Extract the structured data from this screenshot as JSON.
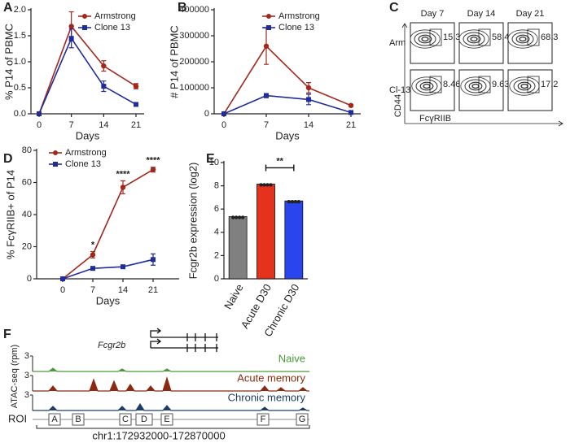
{
  "chart_data": [
    {
      "type": "line",
      "panel": "A",
      "ylabel": "% P14 of PBMC",
      "xlabel": "Days",
      "x": [
        0,
        7,
        14,
        21
      ],
      "xlim": [
        0,
        21
      ],
      "xticks": [
        0,
        7,
        14,
        21
      ],
      "ylim": [
        0,
        2
      ],
      "yticks": [
        {
          "value": 0,
          "label": "0.0"
        },
        {
          "value": 0.5,
          "label": "0.5"
        },
        {
          "value": 1,
          "label": "1.0"
        },
        {
          "value": 1.5,
          "label": "1.5"
        },
        {
          "value": 2,
          "label": "2.0"
        }
      ],
      "legend": "upper right",
      "series": [
        {
          "name": "Armstrong",
          "color": "#a3281c",
          "values": [
            0,
            1.68,
            0.92,
            0.53
          ],
          "errors": [
            0,
            0.28,
            0.1,
            0.05
          ]
        },
        {
          "name": "Clone 13",
          "color": "#1f2d9c",
          "values": [
            0,
            1.45,
            0.53,
            0.18
          ],
          "errors": [
            0,
            0.18,
            0.1,
            0.03
          ]
        }
      ]
    },
    {
      "type": "line",
      "panel": "B",
      "ylabel": "# P14 of PBMC",
      "xlabel": "Days",
      "x": [
        0,
        7,
        14,
        21
      ],
      "xlim": [
        0,
        21
      ],
      "xticks": [
        0,
        7,
        14,
        21
      ],
      "ylim": [
        0,
        400000
      ],
      "yticks": [
        0,
        100000,
        200000,
        300000,
        400000
      ],
      "legend": "upper right",
      "series": [
        {
          "name": "Armstrong",
          "color": "#a3281c",
          "values": [
            0,
            260000,
            100000,
            32000
          ],
          "errors": [
            0,
            70000,
            20000,
            3000
          ]
        },
        {
          "name": "Clone 13",
          "color": "#1f2d9c",
          "values": [
            0,
            70000,
            55000,
            5000
          ],
          "errors": [
            0,
            8000,
            20000,
            3000
          ]
        }
      ]
    },
    {
      "type": "flow",
      "panel": "C",
      "columns": [
        "Day 7",
        "Day 14",
        "Day 21"
      ],
      "rows": [
        "Arm",
        "Cl-13"
      ],
      "ylabel": "CD44",
      "xlabel": "FcγRIIB",
      "gate_values": [
        [
          15.3,
          58.4,
          68.3
        ],
        [
          8.46,
          9.63,
          17.2
        ]
      ]
    },
    {
      "type": "line",
      "panel": "D",
      "ylabel": "% FcγRIIB+ of P14",
      "xlabel": "Days",
      "x": [
        0,
        7,
        14,
        21
      ],
      "xlim": [
        0,
        21
      ],
      "xticks": [
        0,
        7,
        14,
        21
      ],
      "ylim": [
        0,
        80
      ],
      "yticks": [
        0,
        20,
        40,
        60,
        80
      ],
      "legend": "upper left",
      "annotations": [
        {
          "label": "*",
          "x": 7
        },
        {
          "label": "****",
          "x": 14
        },
        {
          "label": "****",
          "x": 21
        }
      ],
      "series": [
        {
          "name": "Armstrong",
          "color": "#a3281c",
          "values": [
            0,
            15,
            57,
            68
          ],
          "errors": [
            0,
            2,
            4,
            1.5
          ]
        },
        {
          "name": "Clone 13",
          "color": "#1f2d9c",
          "values": [
            0,
            6.5,
            7.5,
            12
          ],
          "errors": [
            0,
            0.8,
            1,
            3.5
          ]
        }
      ]
    },
    {
      "type": "bar",
      "panel": "E",
      "ylabel": "Fcgr2b expression (log2)",
      "categories": [
        "Naive",
        "Acute D30",
        "Chronic D30"
      ],
      "values": [
        5.35,
        8.15,
        6.7
      ],
      "colors": [
        "#808080",
        "#e5321c",
        "#2a44ee"
      ],
      "ylim": [
        0,
        10
      ],
      "yticks": [
        0,
        2,
        4,
        6,
        8,
        10
      ],
      "annotations": [
        {
          "label": "**",
          "between": [
            1,
            2
          ]
        }
      ]
    },
    {
      "type": "genome",
      "panel": "F",
      "gene": "Fcgr2b",
      "ylabel": "ATAC-seq (rpm)",
      "tracks": [
        {
          "name": "Naive",
          "color": "#4a9a3c",
          "max": 3
        },
        {
          "name": "Acute memory",
          "color": "#8b2a10",
          "max": 3
        },
        {
          "name": "Chronic memory",
          "color": "#1f3d6b",
          "max": 3
        }
      ],
      "roi_label": "ROI",
      "roi": [
        "A",
        "B",
        "C",
        "D",
        "E",
        "F",
        "G"
      ],
      "region": "chr1:172932000-172870000"
    }
  ]
}
